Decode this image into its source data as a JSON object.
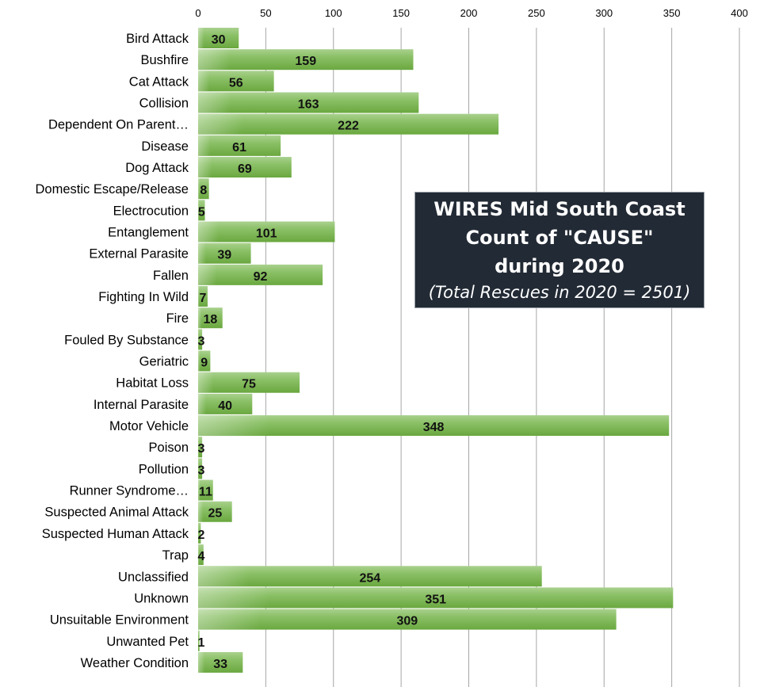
{
  "chart_data": {
    "type": "bar",
    "orientation": "horizontal",
    "title_lines": [
      "WIRES Mid South Coast",
      "Count of \"CAUSE\"",
      "during 2020"
    ],
    "subtitle": "(Total Rescues in 2020 =  2501)",
    "xlabel": "",
    "ylabel": "",
    "xlim": [
      0,
      400
    ],
    "x_ticks": [
      0,
      50,
      100,
      150,
      200,
      250,
      300,
      350,
      400
    ],
    "x_axis_position": "top",
    "grid": true,
    "bar_color": "#70ad47",
    "categories": [
      "Bird Attack",
      "Bushfire",
      "Cat Attack",
      "Collision",
      "Dependent On Parent…",
      "Disease",
      "Dog Attack",
      "Domestic Escape/Release",
      "Electrocution",
      "Entanglement",
      "External Parasite",
      "Fallen",
      "Fighting In Wild",
      "Fire",
      "Fouled By Substance",
      "Geriatric",
      "Habitat Loss",
      "Internal Parasite",
      "Motor Vehicle",
      "Poison",
      "Pollution",
      "Runner Syndrome…",
      "Suspected Animal Attack",
      "Suspected Human Attack",
      "Trap",
      "Unclassified",
      "Unknown",
      "Unsuitable Environment",
      "Unwanted Pet",
      "Weather Condition"
    ],
    "values": [
      30,
      159,
      56,
      163,
      222,
      61,
      69,
      8,
      5,
      101,
      39,
      92,
      7,
      18,
      3,
      9,
      75,
      40,
      348,
      3,
      3,
      11,
      25,
      2,
      4,
      254,
      351,
      309,
      1,
      33
    ]
  }
}
